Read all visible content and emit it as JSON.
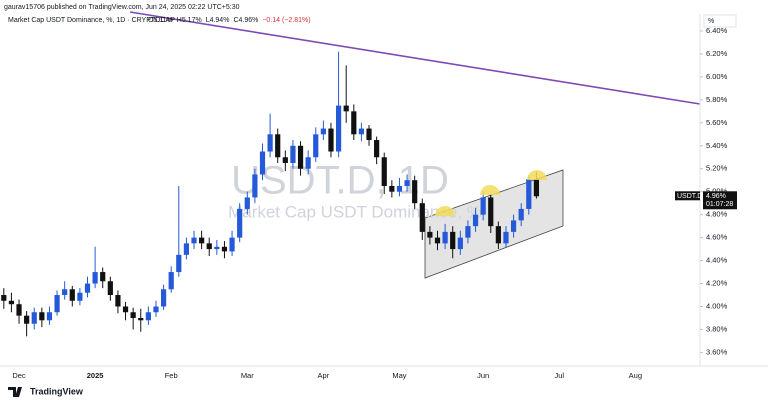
{
  "header": {
    "publisher": "gaurav15706 published on TradingView.com, Jun 24, 2025 02:22 UTC+5:30"
  },
  "chart_data": {
    "type": "candlestick",
    "title": "Market Cap USDT Dominance, %, 1D · CRYPTOCAP",
    "ohlc_text": [
      "O5.11%",
      "H5.17%",
      "L4.94%",
      "C4.96%",
      "−0.14 (−2.81%)"
    ],
    "watermark": "USDT.D, 1D",
    "watermark_subtitle": "Market Cap USDT Dominance, %",
    "symbol": "USDT.D",
    "last_price_label": "4.96%",
    "countdown": "01:07:28",
    "scale_mode": "%",
    "brand": "TradingView",
    "colors": {
      "up": "#2459d8",
      "down": "#111111"
    },
    "categories": [
      null,
      null,
      "Dec",
      null,
      null,
      null,
      null,
      null,
      null,
      null,
      null,
      null,
      "2025",
      null,
      null,
      null,
      null,
      null,
      null,
      null,
      null,
      null,
      "Feb",
      null,
      null,
      null,
      null,
      null,
      null,
      null,
      null,
      null,
      "Mar",
      null,
      null,
      null,
      null,
      null,
      null,
      null,
      null,
      null,
      "Apr",
      null,
      null,
      null,
      null,
      null,
      null,
      null,
      null,
      null,
      "May",
      null,
      null,
      null,
      null,
      null,
      null,
      null,
      null,
      null,
      null,
      "Jun",
      null,
      null,
      null,
      null,
      null,
      null,
      null,
      null,
      null,
      "Jul",
      null,
      null,
      null,
      null,
      null,
      null,
      null,
      null,
      null,
      "Aug",
      null,
      null,
      null,
      null,
      null,
      null,
      null,
      null
    ],
    "open": [
      4.1,
      4.05,
      4.02,
      3.92,
      3.85,
      3.95,
      3.88,
      3.95,
      4.1,
      4.15,
      4.05,
      4.12,
      4.2,
      4.3,
      4.22,
      4.1,
      4.0,
      3.95,
      3.9,
      3.88,
      3.95,
      4.0,
      4.15,
      4.3,
      4.45,
      4.55,
      4.6,
      4.55,
      4.5,
      4.52,
      4.48,
      4.6,
      4.85,
      4.95,
      5.15,
      5.35,
      5.5,
      5.3,
      5.25,
      5.4,
      5.2,
      5.3,
      5.5,
      5.55,
      5.35,
      5.75,
      5.7,
      5.5,
      5.55,
      5.45,
      5.3,
      5.05,
      5.0,
      5.05,
      5.1,
      4.9,
      4.65,
      4.6,
      4.55,
      4.65,
      4.5,
      4.6,
      4.7,
      4.8,
      4.95,
      4.7,
      4.55,
      4.65,
      4.75,
      4.85,
      5.11,
      null,
      null,
      null,
      null,
      null,
      null,
      null,
      null,
      null,
      null,
      null,
      null,
      null,
      null,
      null,
      null,
      null,
      null,
      null,
      null,
      null
    ],
    "high": [
      4.16,
      4.12,
      4.06,
      3.96,
      3.99,
      3.99,
      4.0,
      4.14,
      4.22,
      4.18,
      4.16,
      4.26,
      4.52,
      4.34,
      4.26,
      4.14,
      4.04,
      3.99,
      3.98,
      4.0,
      4.05,
      4.19,
      4.35,
      5.05,
      4.6,
      4.66,
      4.66,
      4.6,
      4.58,
      4.57,
      4.66,
      4.9,
      5.0,
      5.2,
      5.42,
      5.68,
      5.55,
      5.36,
      5.45,
      5.44,
      5.36,
      5.56,
      5.62,
      5.6,
      6.22,
      6.1,
      5.76,
      5.6,
      5.58,
      5.48,
      5.34,
      5.1,
      5.12,
      5.15,
      5.14,
      4.94,
      4.7,
      4.66,
      4.72,
      4.7,
      4.66,
      4.75,
      4.86,
      5.0,
      4.98,
      4.74,
      4.7,
      4.8,
      4.9,
      5.14,
      5.17,
      null,
      null,
      null,
      null,
      null,
      null,
      null,
      null,
      null,
      null,
      null,
      null,
      null,
      null,
      null,
      null,
      null,
      null,
      null,
      null,
      null
    ],
    "low": [
      3.98,
      3.95,
      3.85,
      3.74,
      3.8,
      3.82,
      3.84,
      3.92,
      4.06,
      4.0,
      4.01,
      4.08,
      4.16,
      4.16,
      4.05,
      3.94,
      3.88,
      3.8,
      3.78,
      3.84,
      3.91,
      3.97,
      4.12,
      4.26,
      4.41,
      4.5,
      4.5,
      4.44,
      4.45,
      4.42,
      4.44,
      4.56,
      4.8,
      4.9,
      5.1,
      5.3,
      5.25,
      5.18,
      5.2,
      5.14,
      5.15,
      5.26,
      5.45,
      5.3,
      5.3,
      5.6,
      5.45,
      5.44,
      5.4,
      5.24,
      4.98,
      4.95,
      4.96,
      5.0,
      4.85,
      4.58,
      4.54,
      4.49,
      4.5,
      4.42,
      4.45,
      4.55,
      4.65,
      4.75,
      4.64,
      4.5,
      4.51,
      4.6,
      4.7,
      4.8,
      4.94,
      null,
      null,
      null,
      null,
      null,
      null,
      null,
      null,
      null,
      null,
      null,
      null,
      null,
      null,
      null,
      null,
      null,
      null,
      null,
      null,
      null
    ],
    "close": [
      4.05,
      4.02,
      3.92,
      3.85,
      3.95,
      3.88,
      3.95,
      4.1,
      4.15,
      4.05,
      4.12,
      4.2,
      4.3,
      4.22,
      4.1,
      4.0,
      3.95,
      3.9,
      3.88,
      3.95,
      4.0,
      4.15,
      4.3,
      4.45,
      4.55,
      4.6,
      4.55,
      4.5,
      4.52,
      4.48,
      4.6,
      4.85,
      4.95,
      5.15,
      5.35,
      5.5,
      5.3,
      5.25,
      5.4,
      5.2,
      5.3,
      5.5,
      5.55,
      5.35,
      5.75,
      5.7,
      5.5,
      5.55,
      5.45,
      5.3,
      5.05,
      5.0,
      5.05,
      5.1,
      4.9,
      4.65,
      4.6,
      4.55,
      4.65,
      4.5,
      4.6,
      4.7,
      4.8,
      4.95,
      4.7,
      4.55,
      4.65,
      4.75,
      4.85,
      5.11,
      4.96,
      null,
      null,
      null,
      null,
      null,
      null,
      null,
      null,
      null,
      null,
      null,
      null,
      null,
      null,
      null,
      null,
      null,
      null,
      null,
      null,
      null
    ],
    "ylim": [
      3.5,
      6.5
    ],
    "yticks": [
      {
        "value": 3.6,
        "label": "3.60%"
      },
      {
        "value": 3.8,
        "label": "3.80%"
      },
      {
        "value": 4.0,
        "label": "4.00%"
      },
      {
        "value": 4.2,
        "label": "4.20%"
      },
      {
        "value": 4.4,
        "label": "4.40%"
      },
      {
        "value": 4.6,
        "label": "4.60%"
      },
      {
        "value": 4.8,
        "label": "4.80%"
      },
      {
        "value": 5.0,
        "label": "5.00%"
      },
      {
        "value": 5.2,
        "label": "5.20%"
      },
      {
        "value": 5.4,
        "label": "5.40%"
      },
      {
        "value": 5.6,
        "label": "5.60%"
      },
      {
        "value": 5.8,
        "label": "5.80%"
      },
      {
        "value": 6.0,
        "label": "6.00%"
      },
      {
        "value": 6.2,
        "label": "6.20%"
      },
      {
        "value": 6.4,
        "label": "6.40%"
      }
    ]
  }
}
